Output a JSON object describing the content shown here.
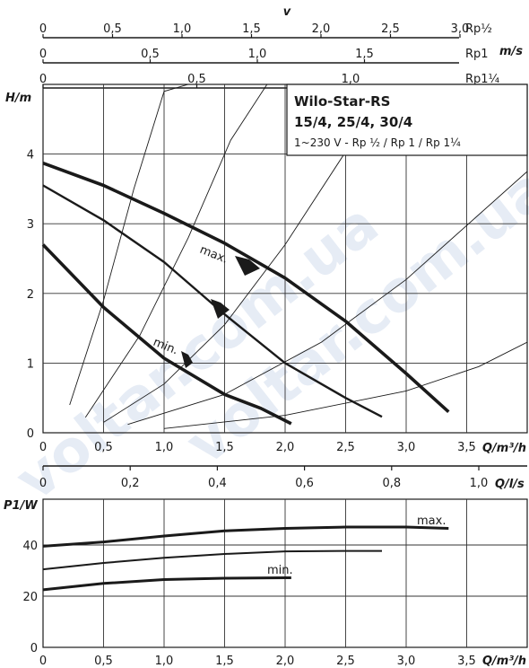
{
  "watermark": "voltar.com.ua",
  "velocity_scales": {
    "symbol": "v",
    "unit": "m/s",
    "rows": [
      {
        "name": "Rp½",
        "ticks": [
          "0",
          "0,5",
          "1,0",
          "1,5",
          "2,0",
          "2,5",
          "3,0"
        ],
        "values": [
          0,
          0.5,
          1.0,
          1.5,
          2.0,
          2.5,
          3.0
        ],
        "max_q": 3.71
      },
      {
        "name": "Rp1",
        "ticks": [
          "0",
          "0,5",
          "1,0",
          "1,5"
        ],
        "values": [
          0,
          0.5,
          1.0,
          1.5
        ],
        "max_q": 3.19
      },
      {
        "name": "Rp1¼",
        "ticks": [
          "0",
          "0,5",
          "1,0"
        ],
        "values": [
          0,
          0.5,
          1.0
        ],
        "max_q": 1.91
      }
    ]
  },
  "legend_box": {
    "line1": "Wilo-Star-RS",
    "line2": "15/4, 25/4, 30/4",
    "line3": "1~230 V - Rp ½ / Rp 1 / Rp 1¼"
  },
  "chart_data": [
    {
      "type": "line",
      "xlabel": "Q/m³/h",
      "ylabel": "H/m",
      "xlim": [
        0,
        4.0
      ],
      "ylim": [
        0,
        5.0
      ],
      "x_ticks": [
        "0",
        "0,5",
        "1,0",
        "1,5",
        "2,0",
        "2,5",
        "3,0",
        "3,5"
      ],
      "x_tick_values": [
        0,
        0.5,
        1.0,
        1.5,
        2.0,
        2.5,
        3.0,
        3.5
      ],
      "y_ticks": [
        "0",
        "1",
        "2",
        "3",
        "4"
      ],
      "y_tick_values": [
        0,
        1,
        2,
        3,
        4
      ],
      "grid": true,
      "series": [
        {
          "name": "max.",
          "x": [
            0,
            0.5,
            1.0,
            1.5,
            2.0,
            2.5,
            3.0,
            3.35
          ],
          "y": [
            3.87,
            3.55,
            3.15,
            2.72,
            2.22,
            1.6,
            0.85,
            0.3
          ]
        },
        {
          "name": "",
          "x": [
            0,
            0.5,
            1.0,
            1.5,
            2.0,
            2.5,
            2.8
          ],
          "y": [
            3.55,
            3.05,
            2.45,
            1.7,
            1.0,
            0.5,
            0.23
          ]
        },
        {
          "name": "min.",
          "x": [
            0,
            0.5,
            1.0,
            1.5,
            1.8,
            2.05
          ],
          "y": [
            2.7,
            1.8,
            1.07,
            0.55,
            0.35,
            0.13
          ]
        }
      ],
      "system_curves": [
        {
          "x": [
            0.22,
            0.5,
            0.75,
            1.0,
            1.2
          ],
          "y": [
            0.4,
            1.9,
            3.5,
            4.9,
            5.0
          ]
        },
        {
          "x": [
            0.35,
            0.8,
            1.2,
            1.55,
            1.85
          ],
          "y": [
            0.22,
            1.4,
            2.8,
            4.2,
            5.0
          ]
        },
        {
          "x": [
            0.5,
            1.0,
            1.5,
            2.0,
            2.6
          ],
          "y": [
            0.15,
            0.7,
            1.55,
            2.7,
            4.3
          ]
        },
        {
          "x": [
            0.7,
            1.5,
            2.3,
            3.0,
            4.0
          ],
          "y": [
            0.12,
            0.55,
            1.3,
            2.2,
            3.75
          ]
        },
        {
          "x": [
            1.0,
            2.0,
            3.0,
            3.6,
            4.0
          ],
          "y": [
            0.06,
            0.25,
            0.6,
            0.95,
            1.3
          ]
        }
      ],
      "annotations": [
        {
          "text": "max.",
          "series": 0
        },
        {
          "text": "min.",
          "series": 2
        }
      ]
    },
    {
      "type": "line",
      "xlabel": "Q/m³/h",
      "ylabel": "P1/W",
      "xlim": [
        0,
        4.0
      ],
      "ylim": [
        0,
        60
      ],
      "x_ticks": [
        "0",
        "0,5",
        "1,0",
        "1,5",
        "2,0",
        "2,5",
        "3,0",
        "3,5"
      ],
      "x_tick_values": [
        0,
        0.5,
        1.0,
        1.5,
        2.0,
        2.5,
        3.0,
        3.5
      ],
      "y_ticks": [
        "0",
        "20",
        "40"
      ],
      "y_tick_values": [
        0,
        20,
        40
      ],
      "grid": true,
      "secondary_axis": {
        "label": "Q/l/s",
        "ticks": [
          "0",
          "0,2",
          "0,4",
          "0,6",
          "0,8",
          "1,0"
        ],
        "values": [
          0,
          0.2,
          0.4,
          0.6,
          0.8,
          1.0
        ]
      },
      "series": [
        {
          "name": "max.",
          "x": [
            0,
            0.5,
            1.0,
            1.5,
            2.0,
            2.5,
            3.0,
            3.35
          ],
          "y": [
            39.5,
            41.2,
            43.5,
            45.5,
            46.5,
            47.0,
            47.0,
            46.5
          ]
        },
        {
          "name": "",
          "x": [
            0,
            0.5,
            1.0,
            1.5,
            2.0,
            2.5,
            2.8
          ],
          "y": [
            30.5,
            33.0,
            35.0,
            36.5,
            37.5,
            37.7,
            37.7
          ]
        },
        {
          "name": "min.",
          "x": [
            0,
            0.5,
            1.0,
            1.5,
            2.0,
            2.05
          ],
          "y": [
            22.5,
            25.0,
            26.5,
            27.0,
            27.2,
            27.2
          ]
        }
      ]
    }
  ]
}
